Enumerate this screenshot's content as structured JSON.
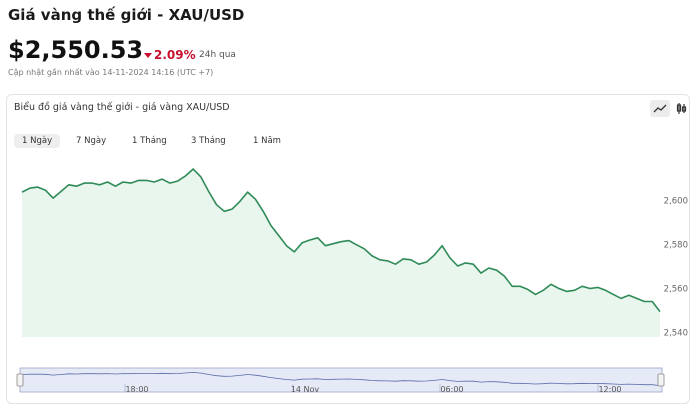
{
  "header": {
    "title": "Giá vàng thế giới - XAU/USD",
    "price": "$2,550.53",
    "change": "2.09%",
    "period": "24h qua",
    "updated": "Cập nhật gần nhất vào 14-11-2024 14:16 (UTC +7)"
  },
  "card": {
    "title": "Biểu đồ giá vàng thế giới - giá vàng XAU/USD",
    "tabs": [
      "1 Ngày",
      "7 Ngày",
      "1 Tháng",
      "3 Tháng",
      "1 Năm"
    ],
    "active_tab": 0
  },
  "chart_data": {
    "type": "area",
    "color": "#2e8b57",
    "fill": "#e9f6ee",
    "values": [
      2603.7,
      2605.5,
      2606,
      2604.6,
      2601,
      2604,
      2607,
      2606.4,
      2607.8,
      2607.8,
      2607,
      2608.3,
      2606.4,
      2608.3,
      2607.8,
      2609,
      2609,
      2608.3,
      2609.6,
      2607.8,
      2608.7,
      2611,
      2614.2,
      2610.5,
      2604,
      2598,
      2595,
      2596,
      2599.5,
      2603.7,
      2600.5,
      2595,
      2588.5,
      2584,
      2579.4,
      2576.6,
      2580.7,
      2582,
      2583,
      2579.4,
      2580.3,
      2581.2,
      2581.7,
      2579.8,
      2578,
      2574.8,
      2573,
      2572.5,
      2571,
      2573.4,
      2573,
      2571,
      2572,
      2575.2,
      2579.4,
      2573.9,
      2570.2,
      2571.6,
      2571,
      2567,
      2569.3,
      2568.3,
      2565.6,
      2561,
      2561,
      2559.6,
      2557.3,
      2559.2,
      2561.9,
      2560,
      2558.7,
      2559.2,
      2561,
      2560,
      2560.5,
      2559.2,
      2557.3,
      2555.5,
      2556.9,
      2555.5,
      2554.1,
      2554.1,
      2549.5
    ],
    "ylim": [
      2538,
      2616
    ],
    "yticks": [
      {
        "value": 2540,
        "label": "2,540"
      },
      {
        "value": 2560,
        "label": "2,560"
      },
      {
        "value": 2580,
        "label": "2,580"
      },
      {
        "value": 2600,
        "label": "2,600"
      }
    ],
    "navigator_labels": [
      "18:00",
      "14 Nov",
      "06:00",
      "12:00"
    ]
  }
}
